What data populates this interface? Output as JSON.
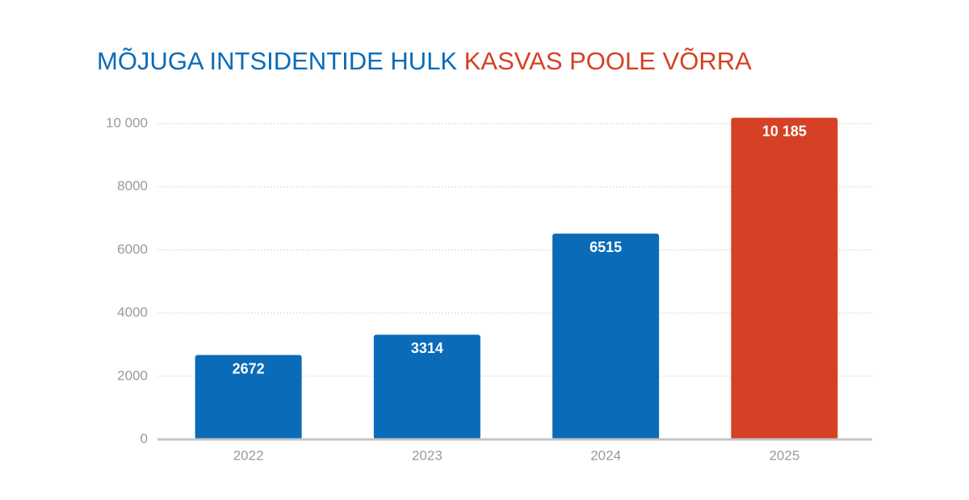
{
  "chart_data": {
    "type": "bar",
    "title": "MÕJUGA INTSIDENTIDE HULK",
    "title_highlight": "KASVAS POOLE VÕRRA",
    "title_color": "#0a6bb8",
    "title_highlight_color": "#d54124",
    "categories": [
      "2022",
      "2023",
      "2024",
      "2025"
    ],
    "values": [
      2672,
      3314,
      6515,
      10185
    ],
    "value_labels": [
      "2672",
      "3314",
      "6515",
      "10 185"
    ],
    "colors": [
      "#0a6bb8",
      "#0a6bb8",
      "#0a6bb8",
      "#d54124"
    ],
    "ylim": [
      0,
      10000
    ],
    "yticks": [
      0,
      2000,
      4000,
      6000,
      {
        "value": 10000,
        "label": "10 000"
      },
      8000
    ],
    "grid": true
  }
}
